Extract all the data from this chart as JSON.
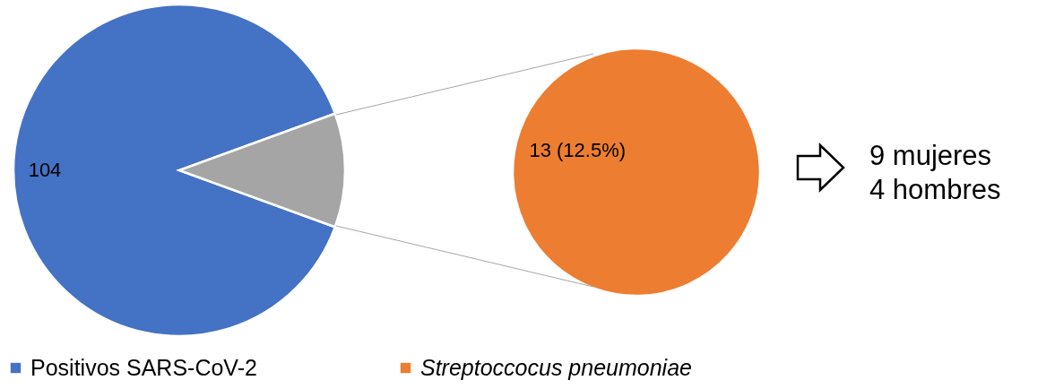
{
  "chart_data": [
    {
      "type": "pie",
      "categories": [
        "Positivos SARS-CoV-2",
        null
      ],
      "values": [
        104,
        13
      ],
      "colors": [
        "#4472c4",
        "#a5a5a5"
      ],
      "value_labels": [
        "104",
        null
      ],
      "legend": "bottom"
    },
    {
      "type": "pie",
      "categories": [
        "Streptoccocus pneumoniae"
      ],
      "values": [
        13
      ],
      "colors": [
        "#ed7d31"
      ],
      "value_labels": [
        "13 (12.5%)"
      ],
      "legend": "bottom",
      "annotations": [
        "9 mujeres",
        "4 hombres"
      ]
    }
  ]
}
